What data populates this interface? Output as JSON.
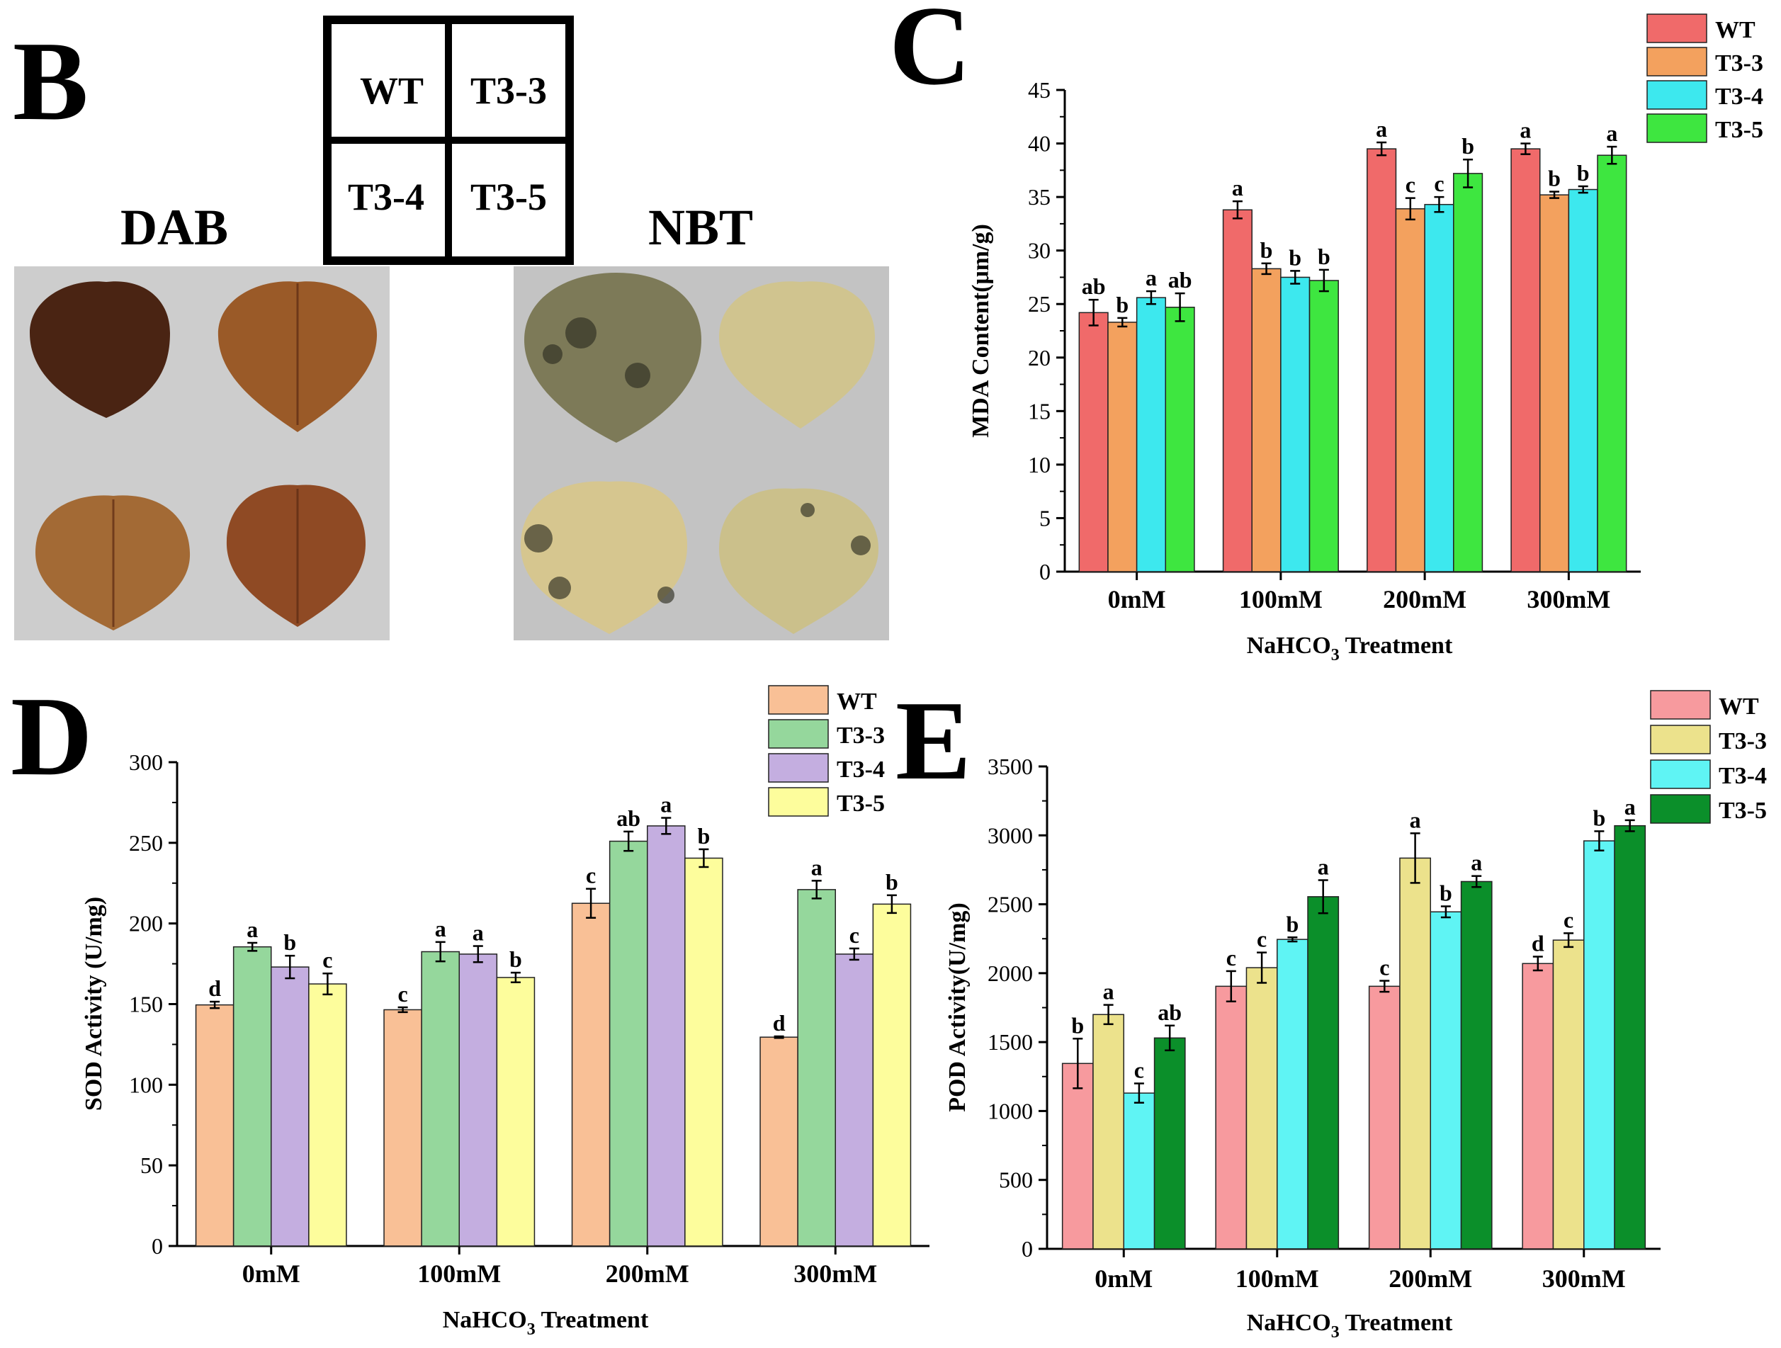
{
  "panel_b": {
    "letter": "B",
    "dab_label": "DAB",
    "nbt_label": "NBT",
    "grid_labels": [
      "WT",
      "T3-3",
      "T3-4",
      "T3-5"
    ],
    "dab_leaf_color": "#8a4a22",
    "nbt_leaf_color": "#c9bd82",
    "background_color": "#c8c8c8"
  },
  "chart_data": [
    {
      "id": "C",
      "type": "bar",
      "panel_letter": "C",
      "categories": [
        "0mM",
        "100mM",
        "200mM",
        "300mM"
      ],
      "series": [
        {
          "name": "WT",
          "color": "#f06a6a",
          "values": [
            24.2,
            33.8,
            39.5,
            39.5
          ],
          "errors": [
            1.2,
            0.8,
            0.6,
            0.5
          ],
          "letters": [
            "ab",
            "a",
            "a",
            "a"
          ]
        },
        {
          "name": "T3-3",
          "color": "#f3a15e",
          "values": [
            23.3,
            28.3,
            33.9,
            35.2
          ],
          "errors": [
            0.4,
            0.5,
            1.0,
            0.3
          ],
          "letters": [
            "b",
            "b",
            "c",
            "b"
          ]
        },
        {
          "name": "T3-4",
          "color": "#3de8ee",
          "values": [
            25.6,
            27.5,
            34.3,
            35.7
          ],
          "errors": [
            0.6,
            0.6,
            0.7,
            0.3
          ],
          "letters": [
            "a",
            "b",
            "c",
            "b"
          ]
        },
        {
          "name": "T3-5",
          "color": "#3ee640",
          "values": [
            24.7,
            27.2,
            37.2,
            38.9
          ],
          "errors": [
            1.3,
            1.0,
            1.3,
            0.8
          ],
          "letters": [
            "ab",
            "b",
            "b",
            "a"
          ]
        }
      ],
      "xlabel": "NaHCO3 Treatment",
      "xlabel_main": "NaHCO",
      "xlabel_sub": "3",
      "xlabel_rest": " Treatment",
      "ylabel": "MDA Content(μm/g)",
      "ylim": [
        0,
        45
      ],
      "yticks": [
        0,
        5,
        10,
        15,
        20,
        25,
        30,
        35,
        40,
        45
      ],
      "legend": "top-right"
    },
    {
      "id": "D",
      "type": "bar",
      "panel_letter": "D",
      "categories": [
        "0mM",
        "100mM",
        "200mM",
        "300mM"
      ],
      "series": [
        {
          "name": "WT",
          "color": "#f9c096",
          "values": [
            149.5,
            146.5,
            212.5,
            129.5
          ],
          "errors": [
            2.0,
            1.5,
            9.0,
            0.5
          ],
          "letters": [
            "d",
            "c",
            "c",
            "d"
          ]
        },
        {
          "name": "T3-3",
          "color": "#95d79c",
          "values": [
            185.5,
            182.5,
            251.0,
            221.0
          ],
          "errors": [
            2.5,
            6.0,
            6.0,
            5.5
          ],
          "letters": [
            "a",
            "a",
            "ab",
            "a"
          ]
        },
        {
          "name": "T3-4",
          "color": "#c4aee0",
          "values": [
            173.0,
            181.0,
            260.5,
            181.0
          ],
          "errors": [
            7.0,
            5.0,
            5.0,
            3.5
          ],
          "letters": [
            "b",
            "a",
            "a",
            "c"
          ]
        },
        {
          "name": "T3-5",
          "color": "#fdfd9c",
          "values": [
            162.5,
            166.5,
            240.5,
            212.0
          ],
          "errors": [
            6.5,
            3.0,
            5.5,
            5.5
          ],
          "letters": [
            "c",
            "b",
            "b",
            "b"
          ]
        }
      ],
      "xlabel": "NaHCO3 Treatment",
      "xlabel_main": "NaHCO",
      "xlabel_sub": "3",
      "xlabel_rest": " Treatment",
      "ylabel": "SOD Activity (U/mg)",
      "ylim": [
        0,
        300
      ],
      "yticks": [
        0,
        50,
        100,
        150,
        200,
        250,
        300
      ],
      "legend": "top-right"
    },
    {
      "id": "E",
      "type": "bar",
      "panel_letter": "E",
      "categories": [
        "0mM",
        "100mM",
        "200mM",
        "300mM"
      ],
      "series": [
        {
          "name": "WT",
          "color": "#f79a9e",
          "values": [
            1345,
            1905,
            1905,
            2070
          ],
          "errors": [
            180,
            110,
            40,
            50
          ],
          "letters": [
            "b",
            "c",
            "c",
            "d"
          ]
        },
        {
          "name": "T3-3",
          "color": "#ece28c",
          "values": [
            1700,
            2040,
            2835,
            2240
          ],
          "errors": [
            70,
            110,
            180,
            50
          ],
          "letters": [
            "a",
            "c",
            "a",
            "c"
          ]
        },
        {
          "name": "T3-4",
          "color": "#5ff4f4",
          "values": [
            1130,
            2245,
            2445,
            2960
          ],
          "errors": [
            70,
            15,
            40,
            70
          ],
          "letters": [
            "c",
            "b",
            "b",
            "b"
          ]
        },
        {
          "name": "T3-5",
          "color": "#0b8f2a",
          "values": [
            1530,
            2555,
            2665,
            3070
          ],
          "errors": [
            90,
            120,
            40,
            40
          ],
          "letters": [
            "ab",
            "a",
            "a",
            "a"
          ]
        }
      ],
      "xlabel": "NaHCO3 Treatment",
      "xlabel_main": "NaHCO",
      "xlabel_sub": "3",
      "xlabel_rest": " Treatment",
      "ylabel": "POD Activity(U/mg)",
      "ylim": [
        0,
        3500
      ],
      "yticks": [
        0,
        500,
        1000,
        1500,
        2000,
        2500,
        3000,
        3500
      ],
      "legend": "top-right"
    }
  ]
}
